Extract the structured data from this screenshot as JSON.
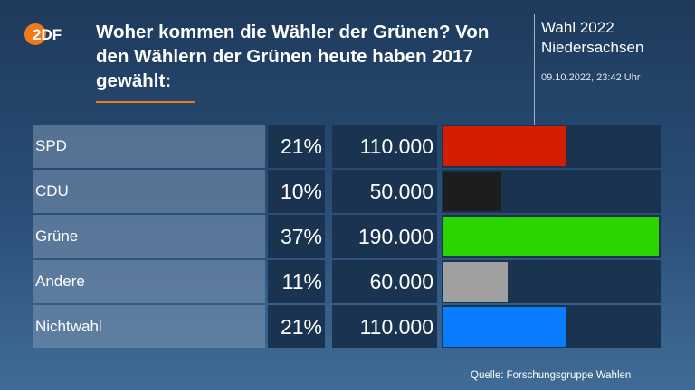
{
  "header": {
    "logo_text": "2DF",
    "title": "Woher kommen die Wähler der Grünen? Von den Wählern der Grünen heute haben 2017 gewählt:",
    "election_line1": "Wahl 2022",
    "election_line2": "Niedersachsen",
    "timestamp": "09.10.2022, 23:42 Uhr"
  },
  "source": "Quelle: Forschungsgruppe Wahlen",
  "colors": {
    "accent": "#f07a1a",
    "SPD": "#d41e00",
    "CDU": "#1d1d1d",
    "Grüne": "#2bd600",
    "Andere": "#a0a0a0",
    "Nichtwahl": "#0a7dff"
  },
  "chart_data": {
    "type": "bar",
    "orientation": "horizontal",
    "categories": [
      "SPD",
      "CDU",
      "Grüne",
      "Andere",
      "Nichtwahl"
    ],
    "percent_labels": [
      "21%",
      "10%",
      "37%",
      "11%",
      "21%"
    ],
    "vote_labels": [
      "110.000",
      "50.000",
      "190.000",
      "60.000",
      "110.000"
    ],
    "values": [
      21,
      10,
      37,
      11,
      21
    ],
    "unit": "%",
    "xlim": [
      0,
      37
    ],
    "grid": false,
    "legend": "none"
  }
}
